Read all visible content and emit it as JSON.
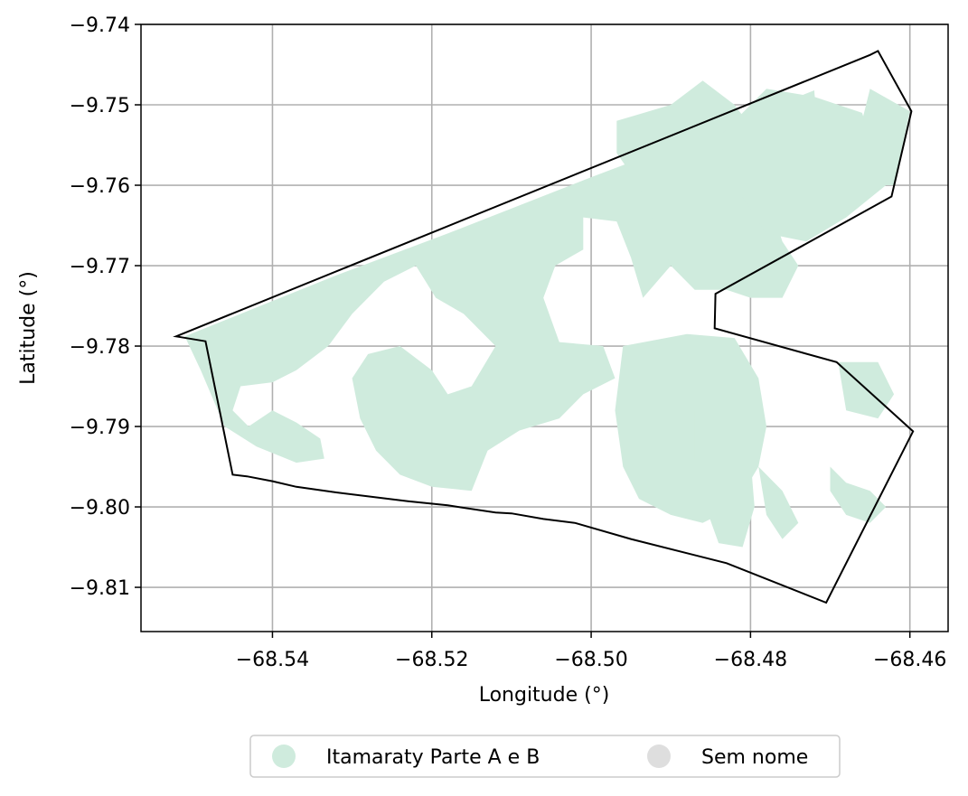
{
  "chart_data": {
    "type": "map",
    "title": "",
    "xlabel": "Longitude (°)",
    "ylabel": "Latitude (°)",
    "xlim": [
      -68.5565,
      -68.4552
    ],
    "ylim": [
      -9.8155,
      -9.74
    ],
    "xticks": [
      -68.54,
      -68.52,
      -68.5,
      -68.48,
      -68.46
    ],
    "xtick_labels": [
      "−68.54",
      "−68.52",
      "−68.50",
      "−68.48",
      "−68.46"
    ],
    "yticks": [
      -9.74,
      -9.75,
      -9.76,
      -9.77,
      -9.78,
      -9.79,
      -9.8,
      -9.81
    ],
    "ytick_labels": [
      "−9.74",
      "−9.75",
      "−9.76",
      "−9.77",
      "−9.78",
      "−9.79",
      "−9.80",
      "−9.81"
    ],
    "grid": true,
    "boundary": [
      [
        -68.5521,
        -9.7788
      ],
      [
        -68.5484,
        -9.7794
      ],
      [
        -68.545,
        -9.796
      ],
      [
        -68.5432,
        -9.7962
      ],
      [
        -68.54,
        -9.7968
      ],
      [
        -68.537,
        -9.7975
      ],
      [
        -68.532,
        -9.7982
      ],
      [
        -68.523,
        -9.7993
      ],
      [
        -68.518,
        -9.7998
      ],
      [
        -68.512,
        -9.8007
      ],
      [
        -68.51,
        -9.8008
      ],
      [
        -68.506,
        -9.8015
      ],
      [
        -68.502,
        -9.802
      ],
      [
        -68.495,
        -9.804
      ],
      [
        -68.483,
        -9.807
      ],
      [
        -68.4705,
        -9.8119
      ],
      [
        -68.4596,
        -9.7906
      ],
      [
        -68.4692,
        -9.782
      ],
      [
        -68.4845,
        -9.7778
      ],
      [
        -68.4844,
        -9.7735
      ],
      [
        -68.4623,
        -9.7614
      ],
      [
        -68.4598,
        -9.7508
      ],
      [
        -68.464,
        -9.7433
      ],
      [
        -68.465,
        -9.7438
      ],
      [
        -68.5521,
        -9.7788
      ]
    ],
    "regions": [
      {
        "name": "Itamaraty Parte A e B",
        "color": "#cfebdd",
        "polygons": [
          [
            [
              -68.551,
              -9.7788
            ],
            [
              -68.542,
              -9.7752
            ],
            [
              -68.532,
              -9.7712
            ],
            [
              -68.518,
              -9.766
            ],
            [
              -68.5,
              -9.759
            ],
            [
              -68.488,
              -9.7545
            ],
            [
              -68.477,
              -9.7502
            ],
            [
              -68.472,
              -9.7482
            ],
            [
              -68.4715,
              -9.754
            ],
            [
              -68.469,
              -9.7575
            ],
            [
              -68.472,
              -9.76
            ],
            [
              -68.476,
              -9.757
            ],
            [
              -68.48,
              -9.755
            ],
            [
              -68.485,
              -9.756
            ],
            [
              -68.488,
              -9.762
            ],
            [
              -68.49,
              -9.77
            ],
            [
              -68.4935,
              -9.774
            ],
            [
              -68.495,
              -9.769
            ],
            [
              -68.4968,
              -9.7645
            ],
            [
              -68.501,
              -9.764
            ],
            [
              -68.501,
              -9.768
            ],
            [
              -68.5045,
              -9.77
            ],
            [
              -68.506,
              -9.774
            ],
            [
              -68.504,
              -9.7795
            ],
            [
              -68.4985,
              -9.78
            ],
            [
              -68.497,
              -9.784
            ],
            [
              -68.501,
              -9.786
            ],
            [
              -68.504,
              -9.789
            ],
            [
              -68.509,
              -9.7905
            ],
            [
              -68.513,
              -9.793
            ],
            [
              -68.515,
              -9.798
            ],
            [
              -68.52,
              -9.7975
            ],
            [
              -68.524,
              -9.796
            ],
            [
              -68.527,
              -9.793
            ],
            [
              -68.529,
              -9.789
            ],
            [
              -68.53,
              -9.784
            ],
            [
              -68.528,
              -9.781
            ],
            [
              -68.524,
              -9.78
            ],
            [
              -68.52,
              -9.783
            ],
            [
              -68.518,
              -9.786
            ],
            [
              -68.515,
              -9.785
            ],
            [
              -68.512,
              -9.78
            ],
            [
              -68.516,
              -9.776
            ],
            [
              -68.5195,
              -9.774
            ],
            [
              -68.522,
              -9.77
            ],
            [
              -68.526,
              -9.772
            ],
            [
              -68.53,
              -9.776
            ],
            [
              -68.533,
              -9.78
            ],
            [
              -68.537,
              -9.783
            ],
            [
              -68.54,
              -9.7845
            ],
            [
              -68.544,
              -9.785
            ],
            [
              -68.545,
              -9.788
            ],
            [
              -68.543,
              -9.79
            ],
            [
              -68.54,
              -9.788
            ],
            [
              -68.537,
              -9.7895
            ],
            [
              -68.534,
              -9.7915
            ],
            [
              -68.5335,
              -9.794
            ],
            [
              -68.537,
              -9.7945
            ],
            [
              -68.542,
              -9.7925
            ],
            [
              -68.546,
              -9.79
            ],
            [
              -68.549,
              -9.783
            ],
            [
              -68.551,
              -9.7788
            ]
          ],
          [
            [
              -68.4968,
              -9.752
            ],
            [
              -68.49,
              -9.75
            ],
            [
              -68.486,
              -9.747
            ],
            [
              -68.482,
              -9.75
            ],
            [
              -68.479,
              -9.754
            ],
            [
              -68.478,
              -9.761
            ],
            [
              -68.476,
              -9.767
            ],
            [
              -68.474,
              -9.77
            ],
            [
              -68.476,
              -9.774
            ],
            [
              -68.48,
              -9.774
            ],
            [
              -68.483,
              -9.773
            ],
            [
              -68.487,
              -9.773
            ],
            [
              -68.49,
              -9.77
            ],
            [
              -68.492,
              -9.765
            ],
            [
              -68.494,
              -9.76
            ],
            [
              -68.4968,
              -9.756
            ],
            [
              -68.4968,
              -9.752
            ]
          ],
          [
            [
              -68.484,
              -9.754
            ],
            [
              -68.478,
              -9.748
            ],
            [
              -68.472,
              -9.749
            ],
            [
              -68.466,
              -9.751
            ],
            [
              -68.463,
              -9.76
            ],
            [
              -68.468,
              -9.764
            ],
            [
              -68.473,
              -9.767
            ],
            [
              -68.478,
              -9.766
            ],
            [
              -68.482,
              -9.76
            ],
            [
              -68.484,
              -9.754
            ]
          ],
          [
            [
              -68.465,
              -9.748
            ],
            [
              -68.46,
              -9.7508
            ],
            [
              -68.462,
              -9.76
            ],
            [
              -68.466,
              -9.76
            ],
            [
              -68.466,
              -9.752
            ],
            [
              -68.465,
              -9.748
            ]
          ],
          [
            [
              -68.496,
              -9.78
            ],
            [
              -68.488,
              -9.7785
            ],
            [
              -68.482,
              -9.779
            ],
            [
              -68.479,
              -9.784
            ],
            [
              -68.478,
              -9.79
            ],
            [
              -68.479,
              -9.795
            ],
            [
              -68.482,
              -9.8
            ],
            [
              -68.486,
              -9.802
            ],
            [
              -68.49,
              -9.801
            ],
            [
              -68.494,
              -9.799
            ],
            [
              -68.496,
              -9.795
            ],
            [
              -68.497,
              -9.788
            ],
            [
              -68.496,
              -9.78
            ]
          ],
          [
            [
              -68.487,
              -9.788
            ],
            [
              -68.483,
              -9.789
            ],
            [
              -68.48,
              -9.794
            ],
            [
              -68.4795,
              -9.8
            ],
            [
              -68.481,
              -9.805
            ],
            [
              -68.484,
              -9.8045
            ],
            [
              -68.486,
              -9.799
            ],
            [
              -68.487,
              -9.794
            ],
            [
              -68.487,
              -9.788
            ]
          ],
          [
            [
              -68.479,
              -9.795
            ],
            [
              -68.476,
              -9.798
            ],
            [
              -68.474,
              -9.802
            ],
            [
              -68.476,
              -9.804
            ],
            [
              -68.478,
              -9.801
            ],
            [
              -68.479,
              -9.795
            ]
          ],
          [
            [
              -68.47,
              -9.795
            ],
            [
              -68.468,
              -9.797
            ],
            [
              -68.465,
              -9.798
            ],
            [
              -68.463,
              -9.8
            ],
            [
              -68.465,
              -9.802
            ],
            [
              -68.468,
              -9.801
            ],
            [
              -68.47,
              -9.798
            ],
            [
              -68.47,
              -9.795
            ]
          ],
          [
            [
              -68.469,
              -9.782
            ],
            [
              -68.464,
              -9.782
            ],
            [
              -68.462,
              -9.786
            ],
            [
              -68.464,
              -9.789
            ],
            [
              -68.468,
              -9.788
            ],
            [
              -68.469,
              -9.782
            ]
          ]
        ]
      },
      {
        "name": "Sem nome",
        "color": "#dedede",
        "polygons": []
      }
    ],
    "legend_position": "bottom-center"
  },
  "legend": {
    "items": [
      {
        "label": "Itamaraty Parte A e B",
        "color": "#cfebdd"
      },
      {
        "label": "Sem nome",
        "color": "#dedede"
      }
    ]
  }
}
